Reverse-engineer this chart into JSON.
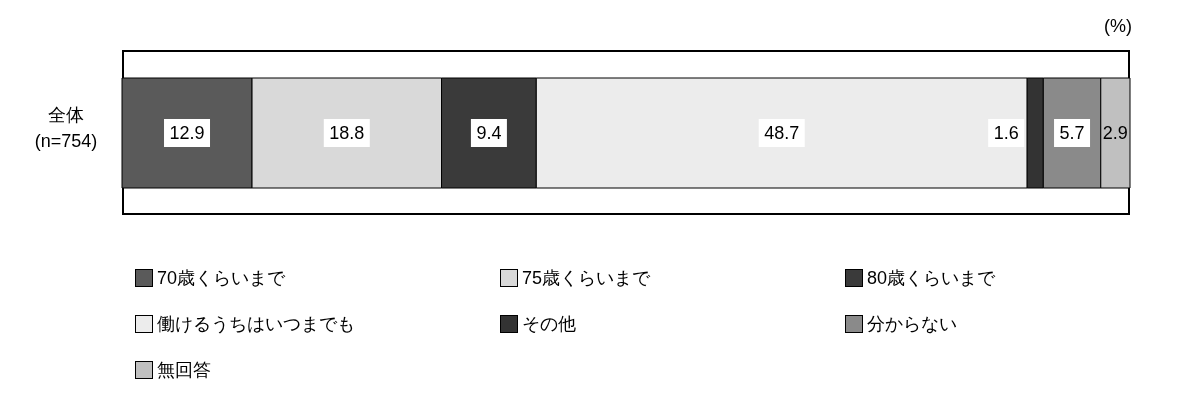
{
  "chart_data": {
    "type": "bar",
    "orientation": "horizontal",
    "stacked": true,
    "categories": [
      "全体\n(n=754)"
    ],
    "series": [
      {
        "name": "70歳くらいまで",
        "color": "#5a5a5a",
        "values": [
          12.9
        ]
      },
      {
        "name": "75歳くらいまで",
        "color": "#d9d9d9",
        "values": [
          18.8
        ]
      },
      {
        "name": "80歳くらいまで",
        "color": "#3a3a3a",
        "values": [
          9.4
        ]
      },
      {
        "name": "働けるうちはいつまでも",
        "color": "#ececec",
        "values": [
          48.7
        ]
      },
      {
        "name": "その他",
        "color": "#333333",
        "values": [
          1.6
        ]
      },
      {
        "name": "分からない",
        "color": "#8a8a8a",
        "values": [
          5.7
        ]
      },
      {
        "name": "無回答",
        "color": "#c0c0c0",
        "values": [
          2.9
        ]
      }
    ],
    "data_labels": true,
    "legend": "bottom",
    "annotations": [
      "(%)"
    ],
    "tick_labels": "y"
  }
}
